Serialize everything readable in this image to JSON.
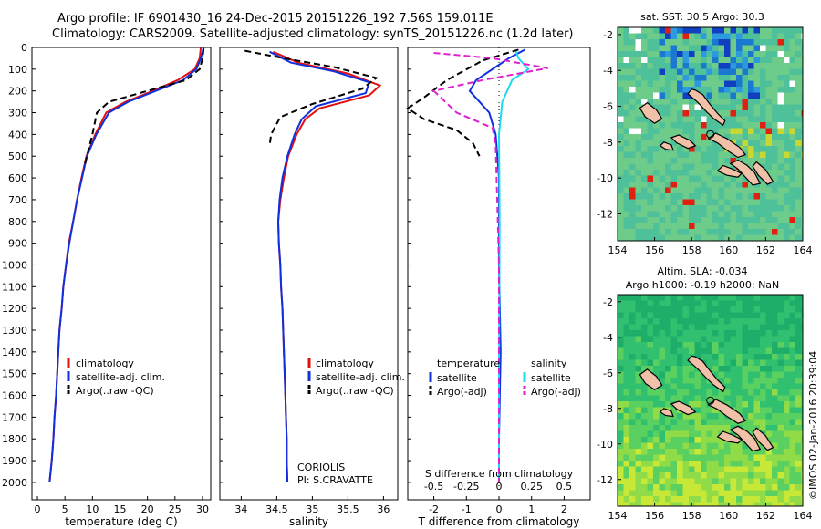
{
  "header": {
    "line1": "Argo profile: IF 6901430_16 24-Dec-2015 20151226_192 7.56S 159.011E",
    "line2": "Climatology: CARS2009. Satellite-adjusted climatology: synTS_20151226.nc (1.2d later)"
  },
  "colors": {
    "climatology": "#e01010",
    "satellite": "#1030e0",
    "argo": "#000000",
    "salinity_satellite": "#20d8f0",
    "salinity_argo": "#e020d0",
    "land": "#f0c0a8"
  },
  "stamp": "©IMOS 02-Jan-2016 20:39:04",
  "chart_data": [
    {
      "id": "temperature",
      "type": "line",
      "xlabel": "temperature (deg C)",
      "ylabel": "",
      "xlim": [
        -1,
        31.5
      ],
      "ylim": [
        2080,
        0
      ],
      "xticks": [
        0,
        5,
        10,
        15,
        20,
        25,
        30
      ],
      "yticks": [
        0,
        100,
        200,
        300,
        400,
        500,
        600,
        700,
        800,
        900,
        1000,
        1100,
        1200,
        1300,
        1400,
        1500,
        1600,
        1700,
        1800,
        1900,
        2000
      ],
      "legend": [
        "climatology",
        "satellite-adj. clim.",
        "Argo(..raw -QC)"
      ],
      "series": [
        {
          "name": "climatology",
          "style": "solid",
          "color": "climatology",
          "points": [
            [
              29.7,
              0
            ],
            [
              29.5,
              50
            ],
            [
              28.6,
              100
            ],
            [
              25.5,
              150
            ],
            [
              21,
              200
            ],
            [
              16,
              250
            ],
            [
              12.5,
              300
            ],
            [
              10.5,
              400
            ],
            [
              8.9,
              500
            ],
            [
              8,
              600
            ],
            [
              7.2,
              700
            ],
            [
              6.5,
              800
            ],
            [
              5.7,
              900
            ],
            [
              5.2,
              1000
            ],
            [
              4.7,
              1100
            ],
            [
              4.4,
              1200
            ],
            [
              4.0,
              1300
            ],
            [
              3.8,
              1400
            ],
            [
              3.6,
              1500
            ],
            [
              3.4,
              1600
            ],
            [
              3.1,
              1700
            ],
            [
              2.9,
              1800
            ],
            [
              2.6,
              1900
            ],
            [
              2.2,
              2000
            ]
          ]
        },
        {
          "name": "satellite-adj. clim.",
          "style": "solid",
          "color": "satellite",
          "points": [
            [
              30.2,
              0
            ],
            [
              29.7,
              50
            ],
            [
              28.9,
              100
            ],
            [
              26.5,
              150
            ],
            [
              21.5,
              200
            ],
            [
              16.5,
              250
            ],
            [
              13,
              300
            ],
            [
              10.7,
              400
            ],
            [
              9,
              500
            ],
            [
              8.1,
              600
            ],
            [
              7.2,
              700
            ],
            [
              6.5,
              800
            ],
            [
              5.8,
              900
            ],
            [
              5.2,
              1000
            ],
            [
              4.7,
              1100
            ],
            [
              4.4,
              1200
            ],
            [
              4.0,
              1300
            ],
            [
              3.8,
              1400
            ],
            [
              3.6,
              1500
            ],
            [
              3.4,
              1600
            ],
            [
              3.1,
              1700
            ],
            [
              2.9,
              1800
            ],
            [
              2.6,
              1900
            ],
            [
              2.2,
              2000
            ]
          ]
        },
        {
          "name": "Argo(..raw -QC)",
          "style": "dashed",
          "color": "argo",
          "points": [
            [
              30.2,
              5
            ],
            [
              30,
              50
            ],
            [
              29.5,
              100
            ],
            [
              27,
              150
            ],
            [
              20,
              200
            ],
            [
              13,
              250
            ],
            [
              10.8,
              300
            ],
            [
              10,
              400
            ],
            [
              9,
              500
            ],
            [
              8.5,
              550
            ]
          ]
        }
      ]
    },
    {
      "id": "salinity",
      "type": "line",
      "xlabel": "salinity",
      "ylabel": "",
      "xlim": [
        33.7,
        36.2
      ],
      "ylim": [
        2080,
        0
      ],
      "xticks": [
        34,
        34.5,
        35,
        35.5,
        36
      ],
      "legend": [
        "climatology",
        "satellite-adj. clim.",
        "Argo(..raw -QC)"
      ],
      "annotation": [
        "CORIOLIS",
        "PI: S.CRAVATTE"
      ],
      "series": [
        {
          "name": "climatology",
          "style": "solid",
          "color": "climatology",
          "points": [
            [
              34.45,
              20
            ],
            [
              34.8,
              70
            ],
            [
              35.5,
              120
            ],
            [
              35.95,
              175
            ],
            [
              35.8,
              220
            ],
            [
              35.1,
              280
            ],
            [
              34.9,
              330
            ],
            [
              34.78,
              400
            ],
            [
              34.66,
              500
            ],
            [
              34.6,
              600
            ],
            [
              34.55,
              700
            ],
            [
              34.52,
              800
            ],
            [
              34.53,
              900
            ],
            [
              34.55,
              1000
            ],
            [
              34.56,
              1100
            ],
            [
              34.58,
              1200
            ],
            [
              34.59,
              1300
            ],
            [
              34.6,
              1400
            ],
            [
              34.61,
              1500
            ],
            [
              34.62,
              1600
            ],
            [
              34.63,
              1700
            ],
            [
              34.64,
              1800
            ],
            [
              34.64,
              1900
            ],
            [
              34.65,
              2000
            ]
          ]
        },
        {
          "name": "satellite-adj. clim.",
          "style": "solid",
          "color": "satellite",
          "points": [
            [
              34.4,
              20
            ],
            [
              34.7,
              70
            ],
            [
              35.3,
              110
            ],
            [
              35.8,
              160
            ],
            [
              35.75,
              210
            ],
            [
              35.05,
              270
            ],
            [
              34.85,
              330
            ],
            [
              34.75,
              400
            ],
            [
              34.65,
              500
            ],
            [
              34.58,
              600
            ],
            [
              34.54,
              700
            ],
            [
              34.52,
              800
            ],
            [
              34.53,
              900
            ],
            [
              34.55,
              1000
            ],
            [
              34.56,
              1100
            ],
            [
              34.58,
              1200
            ],
            [
              34.59,
              1300
            ],
            [
              34.6,
              1400
            ],
            [
              34.61,
              1500
            ],
            [
              34.62,
              1600
            ],
            [
              34.63,
              1700
            ],
            [
              34.64,
              1800
            ],
            [
              34.64,
              1900
            ],
            [
              34.65,
              2000
            ]
          ]
        },
        {
          "name": "Argo(..raw -QC)",
          "style": "dashed",
          "color": "argo",
          "points": [
            [
              34.05,
              15
            ],
            [
              34.6,
              50
            ],
            [
              35.3,
              90
            ],
            [
              35.9,
              140
            ],
            [
              35.7,
              190
            ],
            [
              35.0,
              260
            ],
            [
              34.55,
              320
            ],
            [
              34.42,
              400
            ],
            [
              34.4,
              450
            ]
          ]
        }
      ]
    },
    {
      "id": "difference",
      "type": "line",
      "xlabel": "T difference from climatology",
      "xlabel_top": "S difference from climatology",
      "xlim": [
        -2.8,
        2.8
      ],
      "ylim": [
        2080,
        0
      ],
      "xticks": [
        -2,
        -1,
        0,
        1,
        2
      ],
      "sticks_labels": [
        "-0.5",
        "-0.25",
        "0",
        "0.25",
        "0.5"
      ],
      "sticks_values": [
        -2,
        -1,
        0,
        1,
        2
      ],
      "legend_headers": [
        "temperature",
        "salinity"
      ],
      "legend": [
        "satellite",
        "Argo(-adj)",
        "satellite",
        "Argo(-adj)"
      ],
      "series": [
        {
          "name": "temperature satellite",
          "style": "solid",
          "color": "satellite",
          "points": [
            [
              0.8,
              10
            ],
            [
              0.3,
              50
            ],
            [
              -0.7,
              150
            ],
            [
              -0.9,
              200
            ],
            [
              -0.6,
              250
            ],
            [
              -0.3,
              300
            ],
            [
              -0.1,
              400
            ],
            [
              0,
              600
            ],
            [
              0,
              1000
            ],
            [
              0.05,
              1400
            ],
            [
              0,
              1800
            ],
            [
              0,
              2000
            ]
          ]
        },
        {
          "name": "salinity satellite",
          "style": "solid",
          "color": "salinity_satellite",
          "points": [
            [
              0.5,
              10
            ],
            [
              0.6,
              50
            ],
            [
              0.9,
              100
            ],
            [
              0.4,
              150
            ],
            [
              0.1,
              250
            ],
            [
              0,
              400
            ],
            [
              0.02,
              800
            ],
            [
              0,
              1500
            ],
            [
              0,
              2000
            ]
          ]
        },
        {
          "name": "temperature Argo(-adj)",
          "style": "dashed",
          "color": "argo",
          "points": [
            [
              0.6,
              10
            ],
            [
              -0.5,
              60
            ],
            [
              -1.6,
              150
            ],
            [
              -2.3,
              230
            ],
            [
              -2.8,
              280
            ],
            [
              -2.3,
              330
            ],
            [
              -1.3,
              380
            ],
            [
              -0.8,
              440
            ],
            [
              -0.6,
              500
            ]
          ]
        },
        {
          "name": "salinity Argo(-adj)",
          "style": "dashed",
          "color": "salinity_argo",
          "points": [
            [
              -2.0,
              25
            ],
            [
              -0.2,
              50
            ],
            [
              1.5,
              95
            ],
            [
              -0.5,
              150
            ],
            [
              -2.0,
              200
            ],
            [
              -1.3,
              300
            ],
            [
              -0.2,
              370
            ],
            [
              -0.1,
              450
            ],
            [
              0,
              1000
            ],
            [
              0,
              2000
            ]
          ]
        }
      ]
    },
    {
      "id": "sst-map",
      "type": "heatmap",
      "title": "sat. SST: 30.5 Argo: 30.3",
      "xlim": [
        154,
        164
      ],
      "ylim": [
        -13.5,
        -1.6
      ],
      "xticks": [
        154,
        156,
        158,
        160,
        162,
        164
      ],
      "yticks": [
        -2,
        -4,
        -6,
        -8,
        -10,
        -12
      ],
      "argo_position": [
        159.011,
        -7.56
      ]
    },
    {
      "id": "sla-map",
      "type": "heatmap",
      "title": "Altim. SLA: -0.034",
      "subtitle": "Argo h1000: -0.19 h2000: NaN",
      "xlim": [
        154,
        164
      ],
      "ylim": [
        -13.5,
        -1.6
      ],
      "xticks": [
        154,
        156,
        158,
        160,
        162,
        164
      ],
      "yticks": [
        -2,
        -4,
        -6,
        -8,
        -10,
        -12
      ],
      "argo_position": [
        159.011,
        -7.56
      ]
    }
  ]
}
